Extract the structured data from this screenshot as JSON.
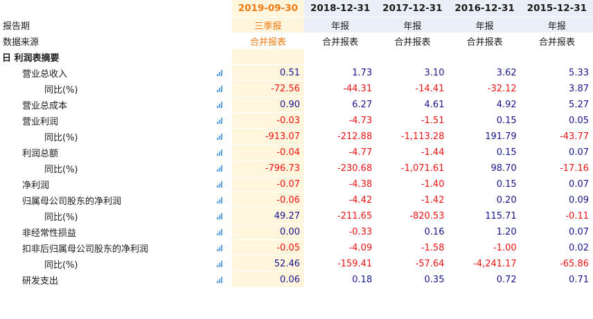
{
  "colors": {
    "accent": "#f07a10",
    "header_bg": "#e9eef7",
    "selected_bg": "#fff5dc",
    "positive": "#13138c",
    "negative": "#ee1111",
    "chart_icon": "#5aa0df"
  },
  "columns": [
    "2019-09-30",
    "2018-12-31",
    "2017-12-31",
    "2016-12-31",
    "2015-12-31"
  ],
  "report_period": {
    "label": "报告期",
    "values": [
      "三季报",
      "年报",
      "年报",
      "年报",
      "年报"
    ]
  },
  "data_source": {
    "label": "数据来源",
    "values": [
      "合并报表",
      "合并报表",
      "合并报表",
      "合并报表",
      "合并报表"
    ]
  },
  "section": {
    "collapse_glyph": "日",
    "title": "利润表摘要"
  },
  "rows": [
    {
      "label": "营业总收入",
      "values": [
        "0.51",
        "1.73",
        "3.10",
        "3.62",
        "5.33"
      ]
    },
    {
      "label": "同比(%)",
      "values": [
        "-72.56",
        "-44.31",
        "-14.41",
        "-32.12",
        "3.87"
      ]
    },
    {
      "label": "营业总成本",
      "values": [
        "0.90",
        "6.27",
        "4.61",
        "4.92",
        "5.27"
      ]
    },
    {
      "label": "营业利润",
      "values": [
        "-0.03",
        "-4.73",
        "-1.51",
        "0.15",
        "0.05"
      ]
    },
    {
      "label": "同比(%)",
      "values": [
        "-913.07",
        "-212.88",
        "-1,113.28",
        "191.79",
        "-43.77"
      ]
    },
    {
      "label": "利润总额",
      "values": [
        "-0.04",
        "-4.77",
        "-1.44",
        "0.15",
        "0.07"
      ]
    },
    {
      "label": "同比(%)",
      "values": [
        "-796.73",
        "-230.68",
        "-1,071.61",
        "98.70",
        "-17.16"
      ]
    },
    {
      "label": "净利润",
      "values": [
        "-0.07",
        "-4.38",
        "-1.40",
        "0.15",
        "0.07"
      ]
    },
    {
      "label": "归属母公司股东的净利润",
      "values": [
        "-0.06",
        "-4.42",
        "-1.42",
        "0.20",
        "0.09"
      ]
    },
    {
      "label": "同比(%)",
      "values": [
        "49.27",
        "-211.65",
        "-820.53",
        "115.71",
        "-0.11"
      ]
    },
    {
      "label": "非经常性损益",
      "values": [
        "0.00",
        "-0.33",
        "0.16",
        "1.20",
        "0.07"
      ]
    },
    {
      "label": "扣非后归属母公司股东的净利润",
      "values": [
        "-0.05",
        "-4.09",
        "-1.58",
        "-1.00",
        "0.02"
      ]
    },
    {
      "label": "同比(%)",
      "values": [
        "52.46",
        "-159.41",
        "-57.64",
        "-4,241.17",
        "-65.86"
      ]
    },
    {
      "label": "研发支出",
      "values": [
        "0.06",
        "0.18",
        "0.35",
        "0.72",
        "0.71"
      ]
    }
  ]
}
